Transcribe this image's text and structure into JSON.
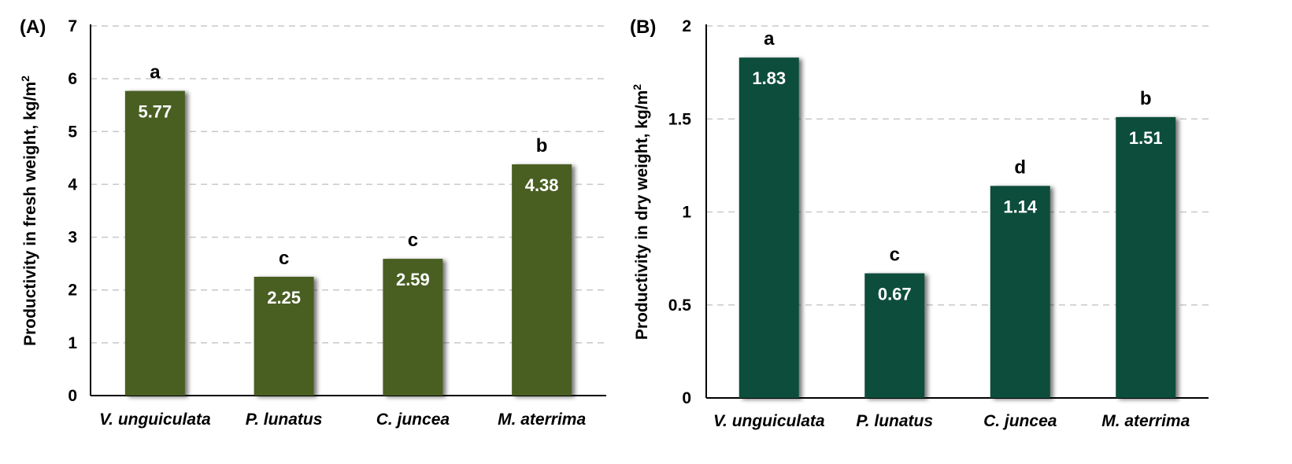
{
  "chart_data": [
    {
      "type": "bar",
      "panel": "(A)",
      "categories": [
        "V. unguiculata",
        "P. lunatus",
        "C. juncea",
        "M. aterrima"
      ],
      "values": [
        5.77,
        2.25,
        2.59,
        4.38
      ],
      "value_labels": [
        "5.77",
        "2.25",
        "2.59",
        "4.38"
      ],
      "significance": [
        "a",
        "c",
        "c",
        "b"
      ],
      "ylabel": "Productivity in fresh weight, kg/m",
      "ylabel_superscript": "2",
      "ylim": [
        0,
        7
      ],
      "yticks": [
        0,
        1,
        2,
        3,
        4,
        5,
        6,
        7
      ],
      "ytick_labels": [
        "0",
        "1",
        "2",
        "3",
        "4",
        "5",
        "6",
        "7"
      ],
      "grid": true,
      "bar_color": "#4a5e22"
    },
    {
      "type": "bar",
      "panel": "(B)",
      "categories": [
        "V. unguiculata",
        "P. lunatus",
        "C. juncea",
        "M. aterrima"
      ],
      "values": [
        1.83,
        0.67,
        1.14,
        1.51
      ],
      "value_labels": [
        "1.83",
        "0.67",
        "1.14",
        "1.51"
      ],
      "significance": [
        "a",
        "c",
        "d",
        "b"
      ],
      "ylabel": "Productivity in dry weight, kg/m",
      "ylabel_superscript": "2",
      "ylim": [
        0,
        2
      ],
      "yticks": [
        0,
        0.5,
        1,
        1.5,
        2
      ],
      "ytick_labels": [
        "0",
        "0.5",
        "1",
        "1.5",
        "2"
      ],
      "grid": true,
      "bar_color": "#114d3b"
    }
  ]
}
